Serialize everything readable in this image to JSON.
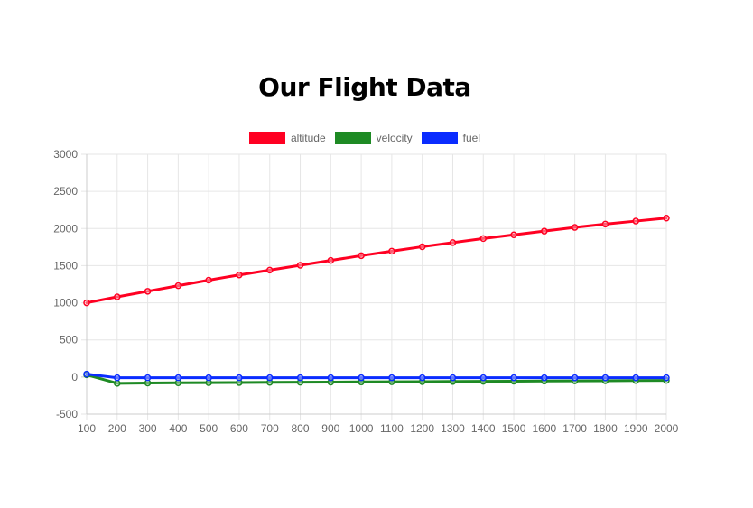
{
  "chart_data": {
    "type": "line",
    "title": "Our Flight Data",
    "xlabel": "",
    "ylabel": "",
    "x": [
      100,
      200,
      300,
      400,
      500,
      600,
      700,
      800,
      900,
      1000,
      1100,
      1200,
      1300,
      1400,
      1500,
      1600,
      1700,
      1800,
      1900,
      2000
    ],
    "ylim": [
      -500,
      3000
    ],
    "yticks": [
      3000,
      2500,
      2000,
      1500,
      1000,
      500,
      0,
      -500
    ],
    "grid": true,
    "legend_position": "top",
    "series": [
      {
        "name": "altitude",
        "color": "#ff0022",
        "values": [
          1000,
          1080,
          1155,
          1230,
          1305,
          1375,
          1440,
          1505,
          1570,
          1635,
          1695,
          1755,
          1810,
          1865,
          1915,
          1965,
          2015,
          2060,
          2100,
          2140
        ]
      },
      {
        "name": "velocity",
        "color": "#1e8a24",
        "values": [
          30,
          -85,
          -80,
          -78,
          -76,
          -74,
          -72,
          -70,
          -68,
          -66,
          -64,
          -62,
          -60,
          -58,
          -56,
          -54,
          -52,
          -50,
          -48,
          -46
        ]
      },
      {
        "name": "fuel",
        "color": "#0a2cff",
        "values": [
          40,
          -10,
          -10,
          -10,
          -10,
          -10,
          -10,
          -10,
          -10,
          -10,
          -10,
          -10,
          -10,
          -10,
          -10,
          -10,
          -10,
          -10,
          -10,
          -10
        ]
      }
    ]
  }
}
